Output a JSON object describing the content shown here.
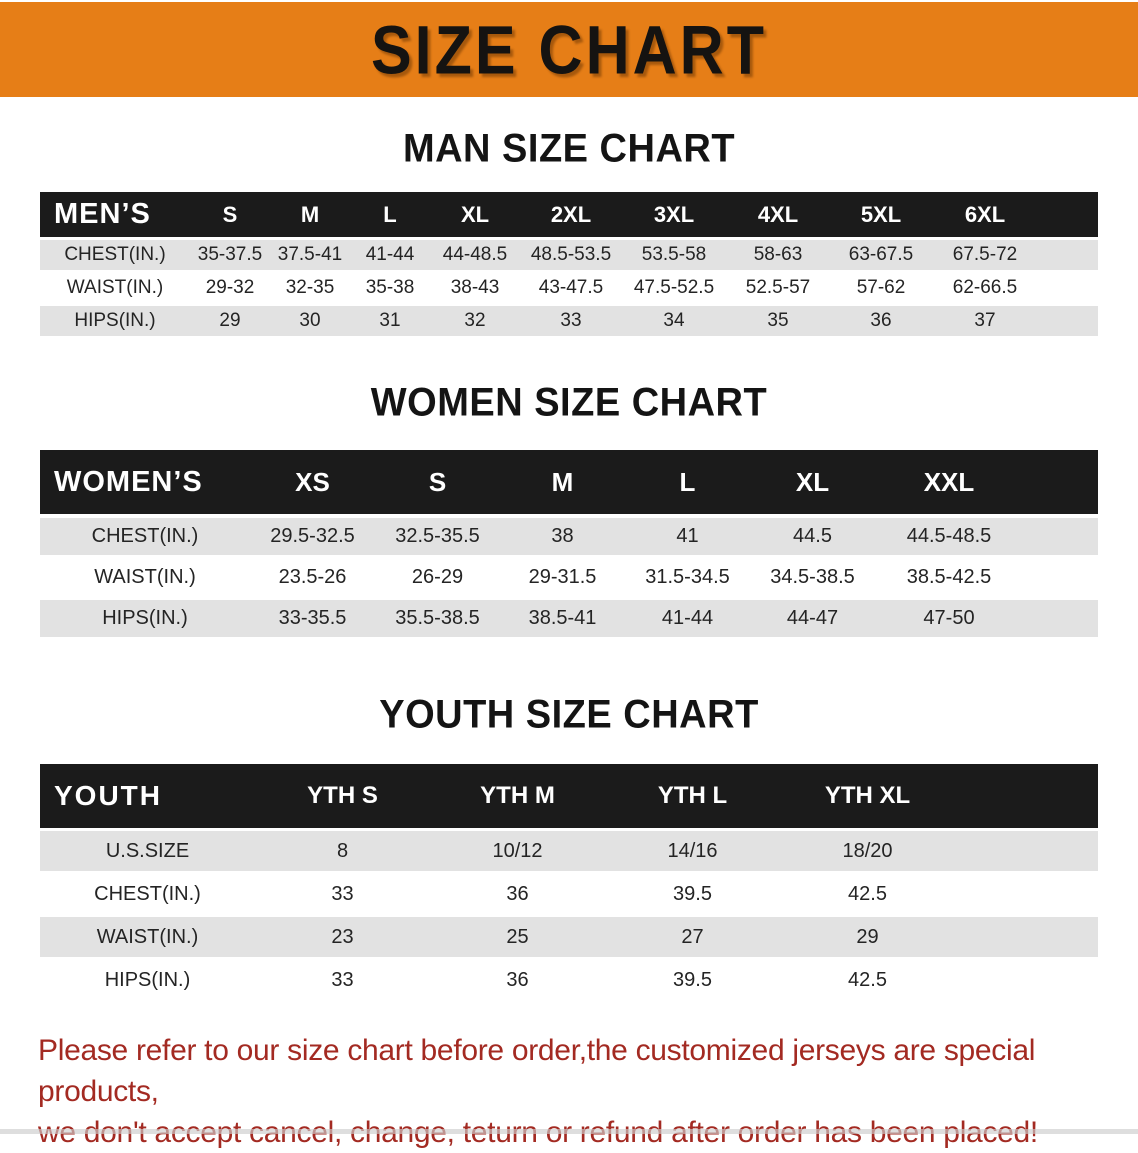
{
  "banner": {
    "title": "SIZE CHART"
  },
  "colors": {
    "banner_bg": "#e67e17",
    "header_bar": "#1b1b1b",
    "row_gray": "#e2e2e2",
    "note_red": "#a32a22"
  },
  "men": {
    "heading": "MAN SIZE CHART",
    "header": [
      "MEN’S",
      "S",
      "M",
      "L",
      "XL",
      "2XL",
      "3XL",
      "4XL",
      "5XL",
      "6XL"
    ],
    "rows": [
      [
        "CHEST(IN.)",
        "35-37.5",
        "37.5-41",
        "41-44",
        "44-48.5",
        "48.5-53.5",
        "53.5-58",
        "58-63",
        "63-67.5",
        "67.5-72"
      ],
      [
        "WAIST(IN.)",
        "29-32",
        "32-35",
        "35-38",
        "38-43",
        "43-47.5",
        "47.5-52.5",
        "52.5-57",
        "57-62",
        "62-66.5"
      ],
      [
        "HIPS(IN.)",
        "29",
        "30",
        "31",
        "32",
        "33",
        "34",
        "35",
        "36",
        "37"
      ]
    ]
  },
  "women": {
    "heading": "WOMEN SIZE CHART",
    "header": [
      "WOMEN’S",
      "XS",
      "S",
      "M",
      "L",
      "XL",
      "XXL"
    ],
    "rows": [
      [
        "CHEST(IN.)",
        "29.5-32.5",
        "32.5-35.5",
        "38",
        "41",
        "44.5",
        "44.5-48.5"
      ],
      [
        "WAIST(IN.)",
        "23.5-26",
        "26-29",
        "29-31.5",
        "31.5-34.5",
        "34.5-38.5",
        "38.5-42.5"
      ],
      [
        "HIPS(IN.)",
        "33-35.5",
        "35.5-38.5",
        "38.5-41",
        "41-44",
        "44-47",
        "47-50"
      ]
    ]
  },
  "youth": {
    "heading": "YOUTH SIZE CHART",
    "header": [
      "YOUTH",
      "YTH S",
      "YTH M",
      "YTH L",
      "YTH XL"
    ],
    "rows": [
      [
        "U.S.SIZE",
        "8",
        "10/12",
        "14/16",
        "18/20"
      ],
      [
        "CHEST(IN.)",
        "33",
        "36",
        "39.5",
        "42.5"
      ],
      [
        "WAIST(IN.)",
        "23",
        "25",
        "27",
        "29"
      ],
      [
        "HIPS(IN.)",
        "33",
        "36",
        "39.5",
        "42.5"
      ]
    ]
  },
  "note": {
    "line1": "Please refer to our size chart before order,the customized jerseys are special products,",
    "line2": "we don't accept cancel, change, teturn or refund after order has been placed!"
  }
}
